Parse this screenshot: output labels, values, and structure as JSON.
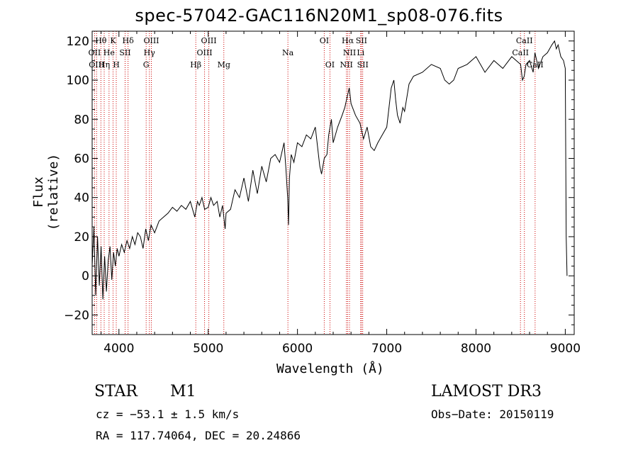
{
  "chart_data": {
    "type": "line",
    "title": "spec-57042-GAC116N20M1_sp08-076.fits",
    "xlabel": "Wavelength (Å)",
    "ylabel": "Flux (relative)",
    "xlim": [
      3700,
      9100
    ],
    "ylim": [
      -30,
      125
    ],
    "xticks": [
      4000,
      5000,
      6000,
      7000,
      8000,
      9000
    ],
    "xtick_labels": [
      "4000",
      "5000",
      "6000",
      "7000",
      "8000",
      "9000"
    ],
    "yticks": [
      -20,
      0,
      20,
      40,
      60,
      80,
      100,
      120
    ],
    "ytick_labels": [
      "−20",
      "0",
      "20",
      "40",
      "60",
      "80",
      "100",
      "120"
    ],
    "series": [
      {
        "name": "flux",
        "x": [
          3700,
          3720,
          3740,
          3760,
          3780,
          3800,
          3820,
          3840,
          3860,
          3880,
          3900,
          3920,
          3940,
          3960,
          3980,
          4000,
          4030,
          4060,
          4090,
          4120,
          4150,
          4180,
          4210,
          4240,
          4270,
          4300,
          4330,
          4360,
          4400,
          4450,
          4500,
          4550,
          4600,
          4650,
          4700,
          4750,
          4800,
          4850,
          4880,
          4900,
          4930,
          4960,
          5000,
          5030,
          5060,
          5100,
          5130,
          5160,
          5190,
          5200,
          5250,
          5300,
          5350,
          5400,
          5450,
          5500,
          5550,
          5600,
          5650,
          5700,
          5750,
          5800,
          5850,
          5870,
          5890,
          5900,
          5910,
          5930,
          5960,
          6000,
          6050,
          6100,
          6150,
          6200,
          6250,
          6270,
          6300,
          6330,
          6350,
          6380,
          6400,
          6450,
          6500,
          6530,
          6560,
          6580,
          6600,
          6650,
          6700,
          6720,
          6740,
          6780,
          6820,
          6860,
          6900,
          6950,
          7000,
          7050,
          7080,
          7100,
          7120,
          7150,
          7180,
          7200,
          7250,
          7300,
          7400,
          7500,
          7600,
          7650,
          7700,
          7750,
          7800,
          7900,
          8000,
          8100,
          8200,
          8300,
          8400,
          8500,
          8520,
          8540,
          8560,
          8600,
          8640,
          8660,
          8700,
          8750,
          8800,
          8850,
          8880,
          8900,
          8920,
          8950,
          8980,
          9000,
          9010,
          9020
        ],
        "y": [
          5,
          25,
          -10,
          20,
          -5,
          15,
          -12,
          10,
          -8,
          8,
          15,
          -2,
          12,
          5,
          14,
          10,
          16,
          12,
          18,
          14,
          20,
          16,
          22,
          20,
          14,
          24,
          18,
          26,
          22,
          28,
          30,
          32,
          35,
          33,
          36,
          34,
          38,
          30,
          38,
          36,
          40,
          34,
          35,
          40,
          36,
          38,
          30,
          36,
          24,
          32,
          34,
          44,
          40,
          50,
          38,
          54,
          42,
          56,
          48,
          60,
          62,
          58,
          68,
          55,
          40,
          26,
          50,
          62,
          58,
          68,
          66,
          72,
          70,
          76,
          56,
          52,
          60,
          62,
          72,
          80,
          68,
          76,
          82,
          86,
          92,
          96,
          88,
          82,
          78,
          74,
          70,
          76,
          66,
          64,
          68,
          72,
          76,
          96,
          100,
          90,
          82,
          78,
          86,
          84,
          98,
          102,
          104,
          108,
          106,
          100,
          98,
          100,
          106,
          108,
          112,
          104,
          110,
          106,
          112,
          108,
          100,
          102,
          108,
          110,
          104,
          114,
          106,
          112,
          114,
          118,
          120,
          116,
          118,
          112,
          110,
          106,
          20,
          0
        ]
      }
    ],
    "lines": [
      {
        "x": 3727
      },
      {
        "x": 3750
      },
      {
        "x": 3798
      },
      {
        "x": 3835
      },
      {
        "x": 3889
      },
      {
        "x": 3934
      },
      {
        "x": 3970
      },
      {
        "x": 4069
      },
      {
        "x": 4102
      },
      {
        "x": 4305
      },
      {
        "x": 4341
      },
      {
        "x": 4363
      },
      {
        "x": 4861
      },
      {
        "x": 4959
      },
      {
        "x": 5007
      },
      {
        "x": 5175
      },
      {
        "x": 5893
      },
      {
        "x": 6300
      },
      {
        "x": 6364
      },
      {
        "x": 6548
      },
      {
        "x": 6563
      },
      {
        "x": 6583
      },
      {
        "x": 6708
      },
      {
        "x": 6717
      },
      {
        "x": 6731
      },
      {
        "x": 8498
      },
      {
        "x": 8542
      },
      {
        "x": 8662
      }
    ],
    "line_labels": [
      {
        "text": "Hθ",
        "x": 3798,
        "row": 1
      },
      {
        "text": "K",
        "x": 3934,
        "row": 1
      },
      {
        "text": "Hδ",
        "x": 4102,
        "row": 1
      },
      {
        "text": "OIII",
        "x": 4363,
        "row": 1
      },
      {
        "text": "OIII",
        "x": 5007,
        "row": 1
      },
      {
        "text": "OI",
        "x": 6300,
        "row": 1
      },
      {
        "text": "Hα",
        "x": 6563,
        "row": 1
      },
      {
        "text": "SII",
        "x": 6717,
        "row": 1
      },
      {
        "text": "CaII",
        "x": 8542,
        "row": 1
      },
      {
        "text": "OII",
        "x": 3727,
        "row": 2
      },
      {
        "text": "He",
        "x": 3889,
        "row": 2
      },
      {
        "text": "SII",
        "x": 4069,
        "row": 2
      },
      {
        "text": "Hγ",
        "x": 4341,
        "row": 2
      },
      {
        "text": "OIII",
        "x": 4959,
        "row": 2
      },
      {
        "text": "Na",
        "x": 5893,
        "row": 2
      },
      {
        "text": "NII",
        "x": 6583,
        "row": 2
      },
      {
        "text": "Li",
        "x": 6708,
        "row": 2
      },
      {
        "text": "CaII",
        "x": 8498,
        "row": 2
      },
      {
        "text": "OIII",
        "x": 3750,
        "row": 3
      },
      {
        "text": "Hη",
        "x": 3835,
        "row": 3
      },
      {
        "text": "H",
        "x": 3970,
        "row": 3
      },
      {
        "text": "G",
        "x": 4305,
        "row": 3
      },
      {
        "text": "Hβ",
        "x": 4861,
        "row": 3
      },
      {
        "text": "Mg",
        "x": 5175,
        "row": 3
      },
      {
        "text": "OI",
        "x": 6364,
        "row": 3
      },
      {
        "text": "NII",
        "x": 6548,
        "row": 3
      },
      {
        "text": "SII",
        "x": 6731,
        "row": 3
      },
      {
        "text": "CaII",
        "x": 8662,
        "row": 3
      }
    ],
    "line_color": "#cc0000"
  },
  "info": {
    "object_class": "STAR",
    "subclass": "M1",
    "survey": "LAMOST DR3",
    "cz": "cz = −53.1 ± 1.5 km/s",
    "obs_date": "Obs−Date: 20150119",
    "coords": "RA = 117.74064, DEC =  20.24866"
  }
}
